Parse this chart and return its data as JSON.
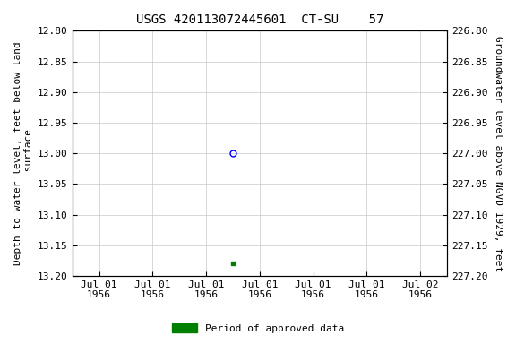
{
  "title": "USGS 420113072445601  CT-SU    57",
  "ylabel_left": "Depth to water level, feet below land\n surface",
  "ylabel_right": "Groundwater level above NGVD 1929, feet",
  "ylim_left": [
    12.8,
    13.2
  ],
  "ylim_right": [
    227.2,
    226.8
  ],
  "yticks_left": [
    12.8,
    12.85,
    12.9,
    12.95,
    13.0,
    13.05,
    13.1,
    13.15,
    13.2
  ],
  "yticks_right": [
    227.2,
    227.15,
    227.1,
    227.05,
    227.0,
    226.95,
    226.9,
    226.85,
    226.8
  ],
  "data_circle": {
    "x": 3.0,
    "value": 13.0,
    "color": "blue",
    "size": 5
  },
  "data_square": {
    "x": 3.0,
    "value": 13.18,
    "color": "#008000",
    "size": 3
  },
  "x_tick_positions": [
    0.5,
    1.5,
    2.5,
    3.5,
    4.5,
    5.5,
    6.5
  ],
  "x_tick_labels": [
    "Jul 01\n1956",
    "Jul 01\n1956",
    "Jul 01\n1956",
    "Jul 01\n1956",
    "Jul 01\n1956",
    "Jul 01\n1956",
    "Jul 02\n1956"
  ],
  "xlim": [
    0,
    7
  ],
  "x_grid_positions": [
    1,
    2,
    3,
    4,
    5,
    6
  ],
  "legend_label": "Period of approved data",
  "legend_color": "#008000",
  "background_color": "#ffffff",
  "grid_color": "#c8c8c8",
  "title_fontsize": 10,
  "label_fontsize": 8,
  "tick_fontsize": 8
}
